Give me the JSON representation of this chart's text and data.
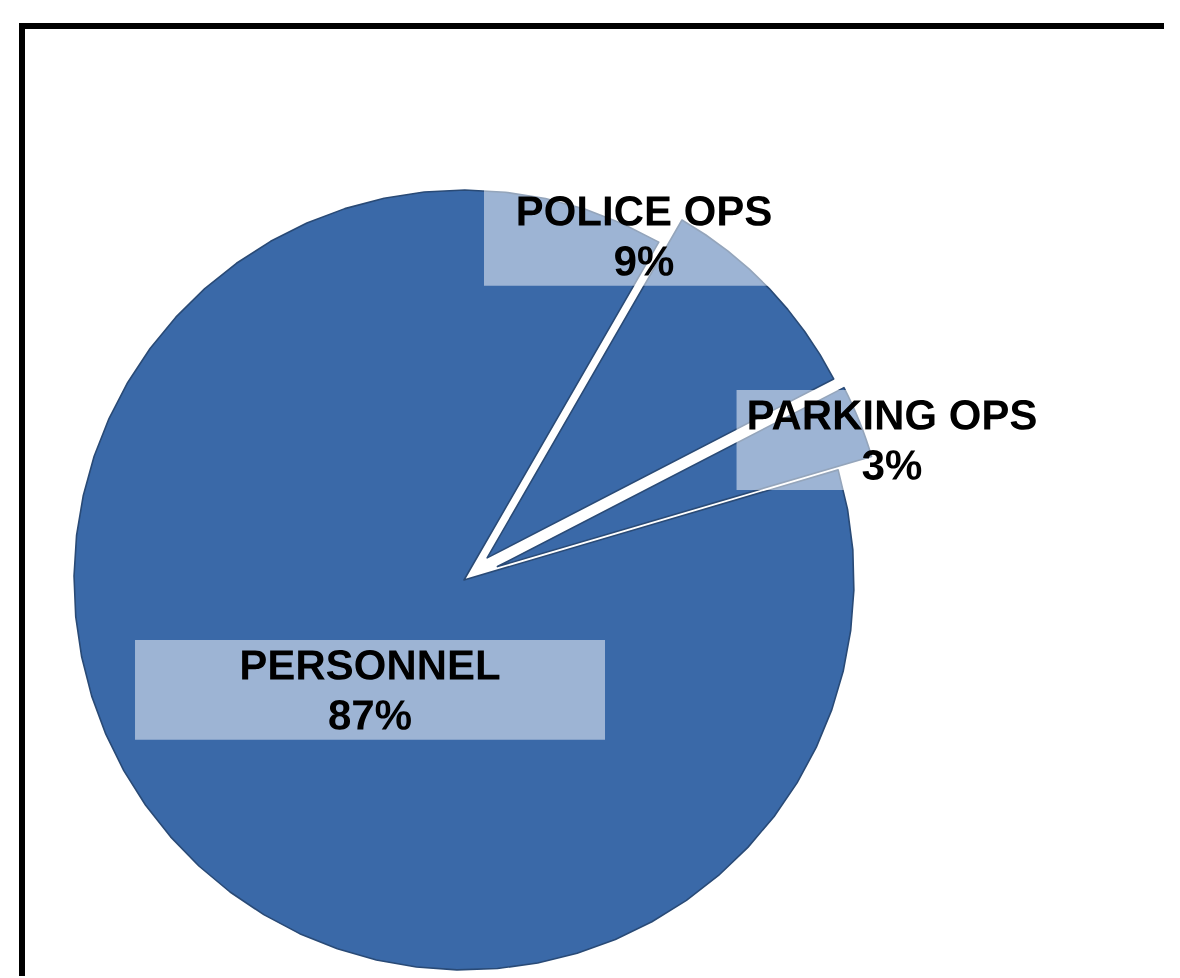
{
  "chart_data": {
    "type": "pie",
    "categories": [
      "PERSONNEL",
      "POLICE OPS",
      "PARKING OPS"
    ],
    "values": [
      87,
      9,
      3
    ],
    "value_labels": [
      "87%",
      "9%",
      "3%"
    ],
    "colors": [
      "#3a69a8",
      "#3a69a8",
      "#3a69a8"
    ]
  }
}
